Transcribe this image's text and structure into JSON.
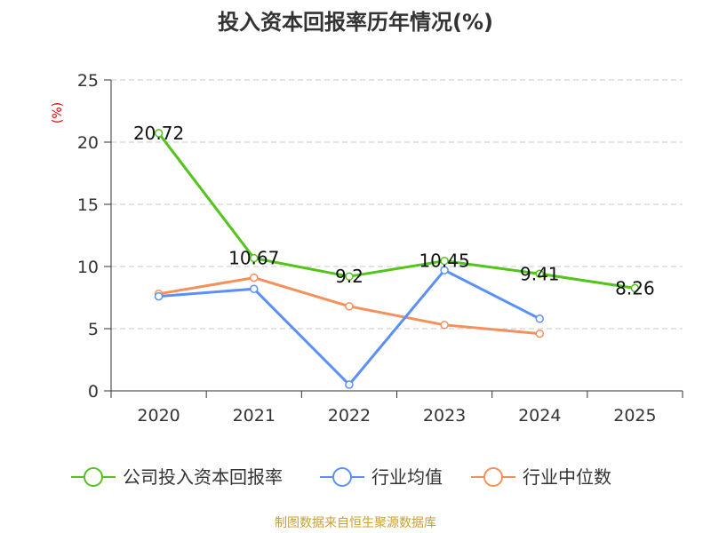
{
  "chart_data": {
    "type": "line",
    "title": "投入资本回报率历年情况(%)",
    "ylabel": "(%)",
    "xlabel": "",
    "categories": [
      "2020",
      "2021",
      "2022",
      "2023",
      "2024",
      "2025"
    ],
    "ylim": [
      0,
      25
    ],
    "yticks": [
      0,
      5,
      10,
      15,
      20,
      25
    ],
    "grid": true,
    "legend_position": "bottom",
    "series": [
      {
        "name": "公司投入资本回报率",
        "color": "#52c41a",
        "values": [
          20.72,
          10.67,
          9.2,
          10.45,
          9.41,
          8.26
        ],
        "labels": [
          "20.72",
          "10.67",
          "9.2",
          "10.45",
          "9.41",
          "8.26"
        ]
      },
      {
        "name": "行业均值",
        "color": "#5b8ff9",
        "values": [
          7.6,
          8.2,
          0.5,
          9.7,
          5.8,
          null
        ]
      },
      {
        "name": "行业中位数",
        "color": "#f6905a",
        "values": [
          7.8,
          9.1,
          6.8,
          5.3,
          4.6,
          null
        ]
      }
    ],
    "source": "制图数据来自恒生聚源数据库"
  }
}
